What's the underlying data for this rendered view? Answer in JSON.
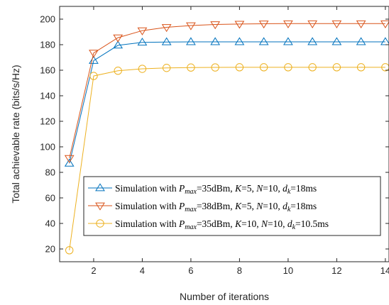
{
  "chart_data": {
    "type": "line",
    "xlabel": "Number of iterations",
    "ylabel": "Total achievable rate (bits/s/Hz)",
    "xlim": [
      0.6,
      14.15
    ],
    "ylim": [
      10,
      210
    ],
    "x_ticks": [
      2,
      4,
      6,
      8,
      10,
      12,
      14
    ],
    "y_ticks": [
      20,
      40,
      60,
      80,
      100,
      120,
      140,
      160,
      180,
      200
    ],
    "grid": false,
    "legend_position": "center-right",
    "x": [
      1,
      2,
      3,
      4,
      5,
      6,
      7,
      8,
      9,
      10,
      11,
      12,
      13,
      14
    ],
    "series": [
      {
        "name": "Simulation with P_max=35dBm, K=5, N=10, d_k=18ms",
        "legend": {
          "lead": "Simulation with ",
          "sym": "P",
          "sub1": "max",
          "part2": "=35dBm, ",
          "k": "K",
          "part3": "=5, ",
          "n": "N",
          "part4": "=10, ",
          "d": "d",
          "sub2": "k",
          "part5": "=18ms"
        },
        "color": "#0072BD",
        "marker": "triangle-up",
        "values": [
          87,
          167.5,
          179.5,
          181.8,
          182.1,
          182.2,
          182.2,
          182.2,
          182.2,
          182.2,
          182.2,
          182.2,
          182.2,
          182.2
        ]
      },
      {
        "name": "Simulation with P_max=38dBm, K=5, N=10, d_k=18ms",
        "legend": {
          "lead": "Simulation with ",
          "sym": "P",
          "sub1": "max",
          "part2": "=38dBm, ",
          "k": "K",
          "part3": "=5, ",
          "n": "N",
          "part4": "=10, ",
          "d": "d",
          "sub2": "k",
          "part5": "=18ms"
        },
        "color": "#D95319",
        "marker": "triangle-down",
        "values": [
          91,
          173.5,
          185.5,
          191,
          193.6,
          195,
          195.8,
          196.2,
          196.4,
          196.5,
          196.5,
          196.5,
          196.5,
          196.5
        ]
      },
      {
        "name": "Simulation with P_max=35dBm, K=10, N=10, d_k=10.5ms",
        "legend": {
          "lead": "Simulation with ",
          "sym": "P",
          "sub1": "max",
          "part2": "=35dBm, ",
          "k": "K",
          "part3": "=10, ",
          "n": "N",
          "part4": "=10, ",
          "d": "d",
          "sub2": "k",
          "part5": "=10.5ms"
        },
        "color": "#EDB120",
        "marker": "circle",
        "values": [
          19,
          155.5,
          159.6,
          161.1,
          161.8,
          162.1,
          162.2,
          162.3,
          162.3,
          162.3,
          162.3,
          162.3,
          162.3,
          162.3
        ]
      }
    ]
  }
}
